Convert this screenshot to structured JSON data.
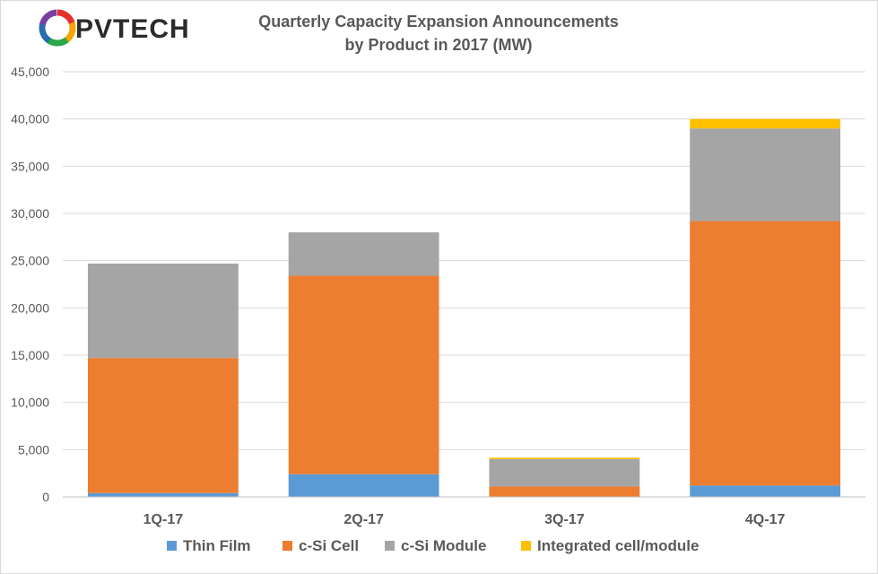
{
  "brand": {
    "logo_text": "PVTECH"
  },
  "chart_data": {
    "type": "bar",
    "stacked": true,
    "title_lines": [
      "Quarterly Capacity Expansion Announcements",
      "by Product in 2017 (MW)"
    ],
    "categories": [
      "1Q-17",
      "2Q-17",
      "3Q-17",
      "4Q-17"
    ],
    "series": [
      {
        "name": "Thin Film",
        "color": "#5b9bd5",
        "values": [
          400,
          2400,
          0,
          1200
        ]
      },
      {
        "name": "c-Si Cell",
        "color": "#ed7d31",
        "values": [
          14300,
          21000,
          1100,
          28000
        ]
      },
      {
        "name": "c-Si Module",
        "color": "#a5a5a5",
        "values": [
          10000,
          4600,
          2900,
          9800
        ]
      },
      {
        "name": "Integrated cell/module",
        "color": "#ffc000",
        "values": [
          0,
          0,
          150,
          1000
        ]
      }
    ],
    "ylim": [
      0,
      45000
    ],
    "y_ticks": [
      {
        "value": 0,
        "label": "0"
      },
      {
        "value": 5000,
        "label": "5,000"
      },
      {
        "value": 10000,
        "label": "10,000"
      },
      {
        "value": 15000,
        "label": "15,000"
      },
      {
        "value": 20000,
        "label": "20,000"
      },
      {
        "value": 25000,
        "label": "25,000"
      },
      {
        "value": 30000,
        "label": "30,000"
      },
      {
        "value": 35000,
        "label": "35,000"
      },
      {
        "value": 40000,
        "label": "40,000"
      },
      {
        "value": 45000,
        "label": "45,000"
      }
    ],
    "grid": true,
    "legend_position": "bottom",
    "gridline_color": "#d9d9d9",
    "axis_color": "#bfbfbf",
    "title_color": "#595959",
    "logo_colors": {
      "text": "#2b2b2b",
      "ring": [
        "#e4312b",
        "#f7a400",
        "#2aa84a",
        "#2b6cb0",
        "#7b3fa0"
      ]
    }
  }
}
